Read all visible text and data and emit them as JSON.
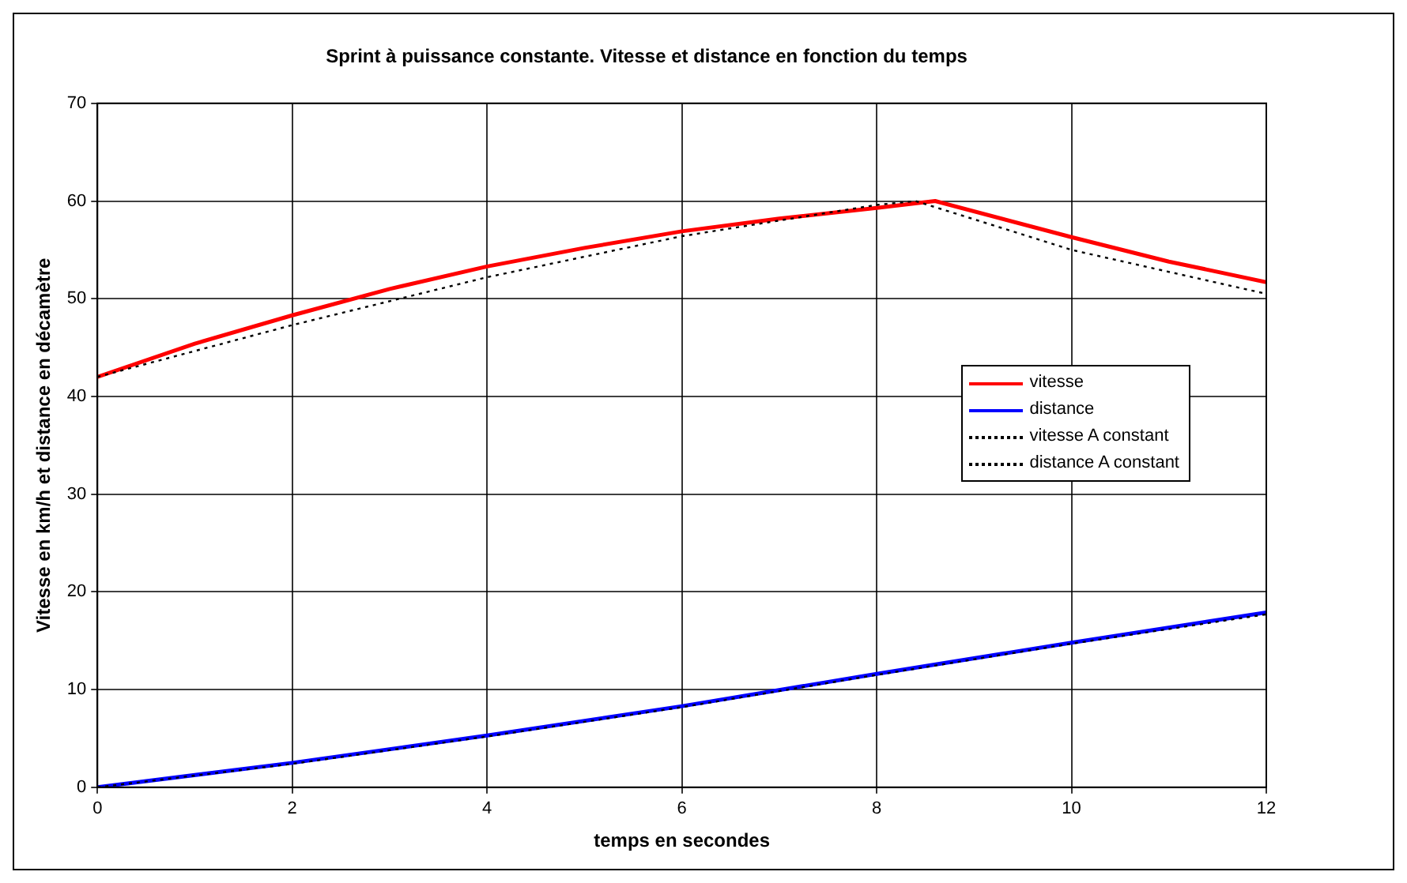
{
  "chart_data": {
    "type": "line",
    "title": "Sprint à puissance constante. Vitesse et distance en fonction du temps",
    "xlabel": "temps en secondes",
    "ylabel": "Vitesse en km/h et distance en décamètre",
    "xlim": [
      0,
      12
    ],
    "xticks": [
      0,
      2,
      4,
      6,
      8,
      10,
      12
    ],
    "ylim": [
      0,
      70
    ],
    "yticks": [
      0,
      10,
      20,
      30,
      40,
      50,
      60,
      70
    ],
    "grid": true,
    "legend": "right",
    "marker": "none",
    "series": [
      {
        "name": "vitesse",
        "color": "#ff0000",
        "line_style": "solid",
        "x": [
          0,
          1,
          2,
          3,
          4,
          5,
          6,
          7,
          8,
          8.6,
          10,
          11,
          12
        ],
        "values": [
          42,
          45.4,
          48.3,
          51,
          53.3,
          55.2,
          56.9,
          58.2,
          59.3,
          60,
          56.3,
          53.8,
          51.7
        ]
      },
      {
        "name": "distance",
        "color": "#0000ff",
        "line_style": "solid",
        "x": [
          0,
          2,
          4,
          6,
          8,
          10,
          12
        ],
        "values": [
          0,
          2.5,
          5.3,
          8.3,
          11.6,
          14.8,
          17.9
        ]
      },
      {
        "name": "vitesse A constant",
        "color": "#000000",
        "line_style": "dotted",
        "x": [
          0,
          2,
          4,
          6,
          8,
          8.4,
          10,
          12
        ],
        "values": [
          42,
          47.3,
          52.2,
          56.4,
          59.6,
          60,
          55,
          50.5
        ]
      },
      {
        "name": "distance A constant",
        "color": "#000000",
        "line_style": "dotted",
        "x": [
          0,
          2,
          4,
          6,
          8,
          10,
          12
        ],
        "values": [
          0,
          2.4,
          5.2,
          8.2,
          11.5,
          14.7,
          17.7
        ]
      }
    ]
  }
}
